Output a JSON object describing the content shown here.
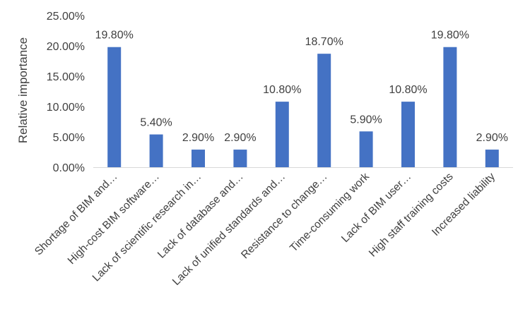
{
  "chart_data": {
    "type": "bar",
    "title": "",
    "xlabel": "",
    "ylabel": "Relative importance",
    "ylim": [
      0,
      25
    ],
    "y_ticks": [
      0,
      5,
      10,
      15,
      20,
      25
    ],
    "y_tick_labels": [
      "0.00%",
      "5.00%",
      "10.00%",
      "15.00%",
      "20.00%",
      "25.00%"
    ],
    "grid": false,
    "legend": "none",
    "bar_color": "#4472c4",
    "categories": [
      "Shortage of BIM and…",
      "High-cost BIM software…",
      "Lack of scientific research in…",
      "Lack of database and…",
      "Lack of unified standards and…",
      "Resistance to change…",
      "Time-consuming work",
      "Lack of BIM user…",
      "High staff training costs",
      "Increased liability"
    ],
    "values": [
      19.8,
      5.4,
      2.9,
      2.9,
      10.8,
      18.7,
      5.9,
      10.8,
      19.8,
      2.9
    ],
    "data_labels": [
      "19.80%",
      "5.40%",
      "2.90%",
      "2.90%",
      "10.80%",
      "18.70%",
      "5.90%",
      "10.80%",
      "19.80%",
      "2.90%"
    ]
  }
}
